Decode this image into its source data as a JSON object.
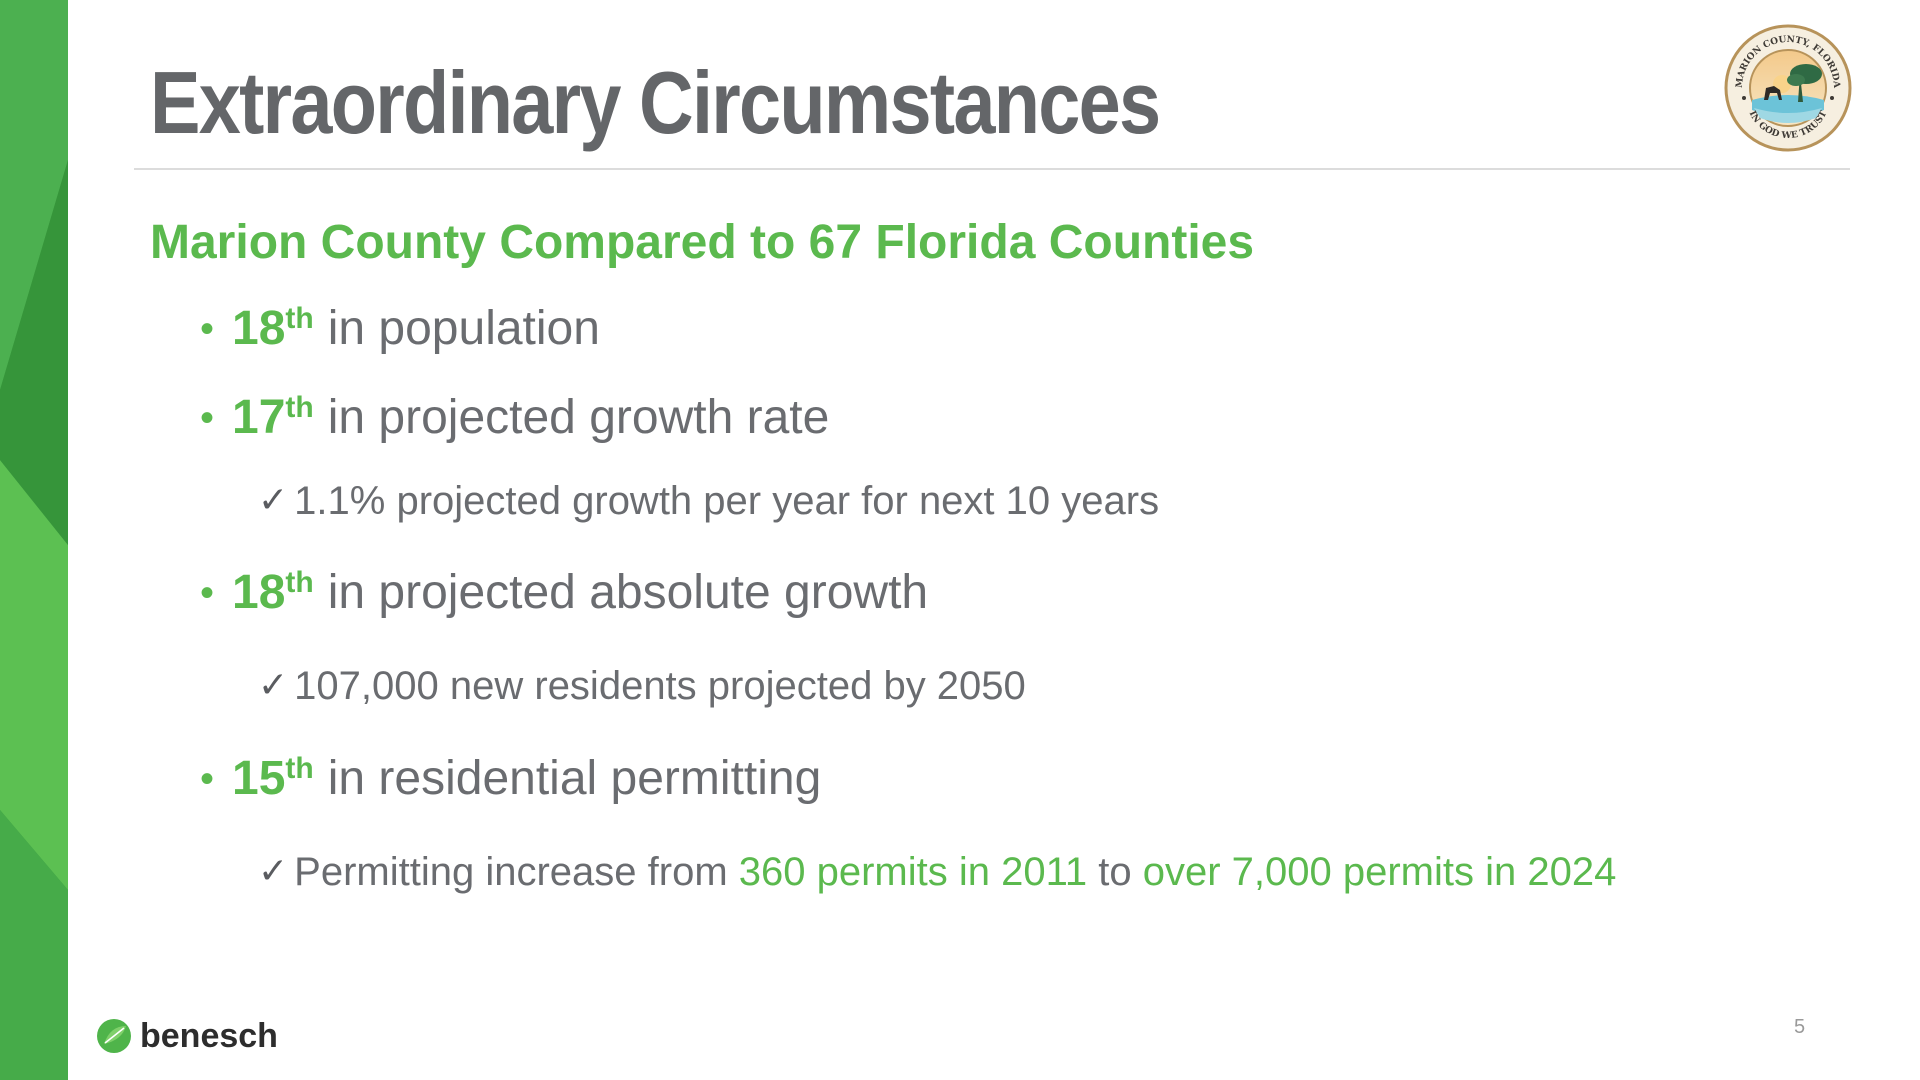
{
  "slide": {
    "title": "Extraordinary Circumstances",
    "subtitle": "Marion County Compared to 67 Florida Counties",
    "page_number": "5",
    "colors": {
      "accent_green": "#5bb94e",
      "dark_green": "#3a9b3e",
      "title_gray": "#646669",
      "body_gray": "#6a6c70"
    }
  },
  "bullets": [
    {
      "rank": "18",
      "suffix": "th",
      "text": "in population"
    },
    {
      "rank": "17",
      "suffix": "th",
      "text": "in projected growth rate"
    },
    {
      "rank": "18",
      "suffix": "th",
      "text": "in projected absolute growth"
    },
    {
      "rank": "15",
      "suffix": "th",
      "text": "in residential permitting"
    }
  ],
  "sub_bullets": {
    "growth_rate": "1.1% projected growth per year for next 10 years",
    "absolute_growth": "107,000 new residents projected by 2050",
    "permitting": {
      "prefix": "Permitting increase from ",
      "highlight_start": "360 permits in 2011",
      "middle": " to ",
      "highlight_end": "over 7,000 permits in 2024"
    }
  },
  "seal": {
    "text_top": "MARION COUNTY, FLORIDA",
    "text_bottom": "IN GOD WE TRUST",
    "icon": "county-seal-icon"
  },
  "logo": {
    "text": "benesch",
    "icon": "leaf-logo-icon"
  }
}
